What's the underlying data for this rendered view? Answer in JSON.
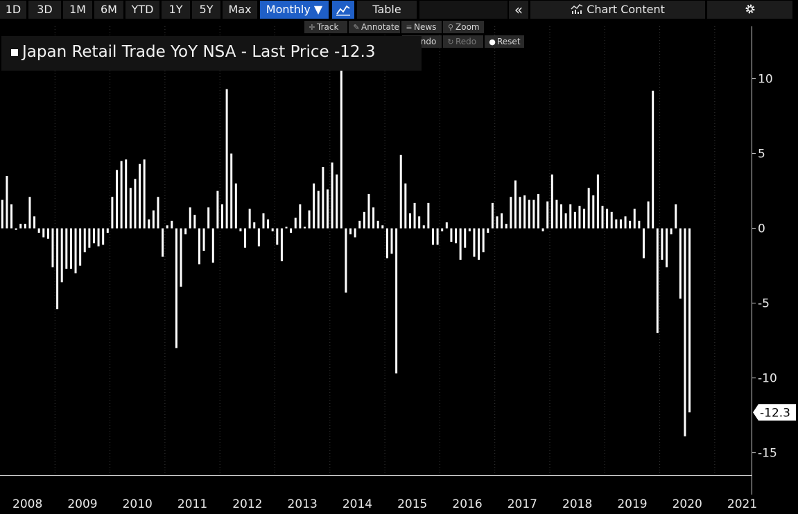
{
  "toolbar": {
    "ranges": [
      "1D",
      "3D",
      "1M",
      "6M",
      "YTD",
      "1Y",
      "5Y",
      "Max"
    ],
    "frequency": "Monthly ▼",
    "chart_icon": "line-chart-icon",
    "table": "Table",
    "collapse_icon": "«",
    "chart_content": "Chart Content",
    "settings_icon": "gear-icon"
  },
  "tools": {
    "track": "Track",
    "annotate": "Annotate",
    "news": "News",
    "zoom": "Zoom",
    "undo": "Undo",
    "redo": "Redo",
    "reset": "Reset"
  },
  "colors": {
    "background": "#000000",
    "bars": "#ffffff",
    "grid": "#3a3a3a",
    "active_button": "#1f5fc7"
  },
  "chart_data": {
    "type": "bar",
    "title": "Japan Retail Trade YoY NSA - Last Price -12.3",
    "last_value_label": "-12.3",
    "ylim": [
      -16.5,
      13.5
    ],
    "yticks": [
      10,
      5,
      0,
      -5,
      -10,
      -15
    ],
    "x_labels": [
      "2008",
      "2009",
      "2010",
      "2011",
      "2012",
      "2013",
      "2014",
      "2015",
      "2016",
      "2017",
      "2018",
      "2019",
      "2020",
      "2021"
    ],
    "grid": "vertical dotted",
    "series": [
      {
        "start": "2008-01",
        "frequency": "monthly",
        "values": [
          1.9,
          3.5,
          1.6,
          -0.1,
          0.3,
          0.3,
          2.1,
          0.8,
          -0.3,
          -0.6,
          -0.7,
          -2.6,
          -5.4,
          -3.6,
          -2.7,
          -2.7,
          -3.0,
          -2.5,
          -1.6,
          -1.3,
          -1.0,
          -1.2,
          -1.1,
          -0.3,
          2.1,
          3.9,
          4.5,
          4.6,
          2.7,
          3.3,
          4.3,
          4.6,
          0.6,
          1.2,
          2.1,
          -1.9,
          0.2,
          0.5,
          -8.0,
          -3.9,
          -0.4,
          1.4,
          0.9,
          -2.4,
          -1.5,
          1.4,
          -2.3,
          2.5,
          1.6,
          9.3,
          5.0,
          3.0,
          -0.2,
          -1.3,
          1.3,
          0.4,
          -1.2,
          1.0,
          0.6,
          -0.2,
          -1.1,
          -2.2,
          0.1,
          -0.3,
          0.7,
          1.6,
          0.1,
          1.2,
          3.0,
          2.5,
          4.1,
          2.6,
          4.4,
          3.6,
          11.0,
          -4.3,
          -0.4,
          -0.6,
          0.5,
          1.1,
          2.3,
          1.4,
          0.5,
          0.2,
          -2.0,
          -1.7,
          -9.7,
          4.9,
          3.0,
          1.0,
          1.7,
          0.8,
          0.2,
          1.7,
          -1.1,
          -1.1,
          -0.2,
          0.4,
          -0.9,
          -1.0,
          -2.1,
          -1.3,
          -0.2,
          -1.9,
          -2.1,
          -1.6,
          -0.3,
          1.7,
          0.8,
          1.0,
          0.3,
          2.1,
          3.2,
          2.1,
          2.2,
          1.9,
          1.9,
          2.3,
          -0.2,
          1.8,
          3.6,
          1.9,
          1.6,
          1.0,
          1.6,
          1.1,
          1.5,
          1.3,
          2.7,
          2.2,
          3.6,
          1.5,
          1.3,
          1.1,
          0.6,
          0.6,
          0.8,
          0.5,
          1.3,
          0.5,
          -2.0,
          1.8,
          9.2,
          -7.0,
          -2.1,
          -2.6,
          -0.4,
          1.6,
          -4.7,
          -13.9,
          -12.3
        ]
      }
    ]
  }
}
